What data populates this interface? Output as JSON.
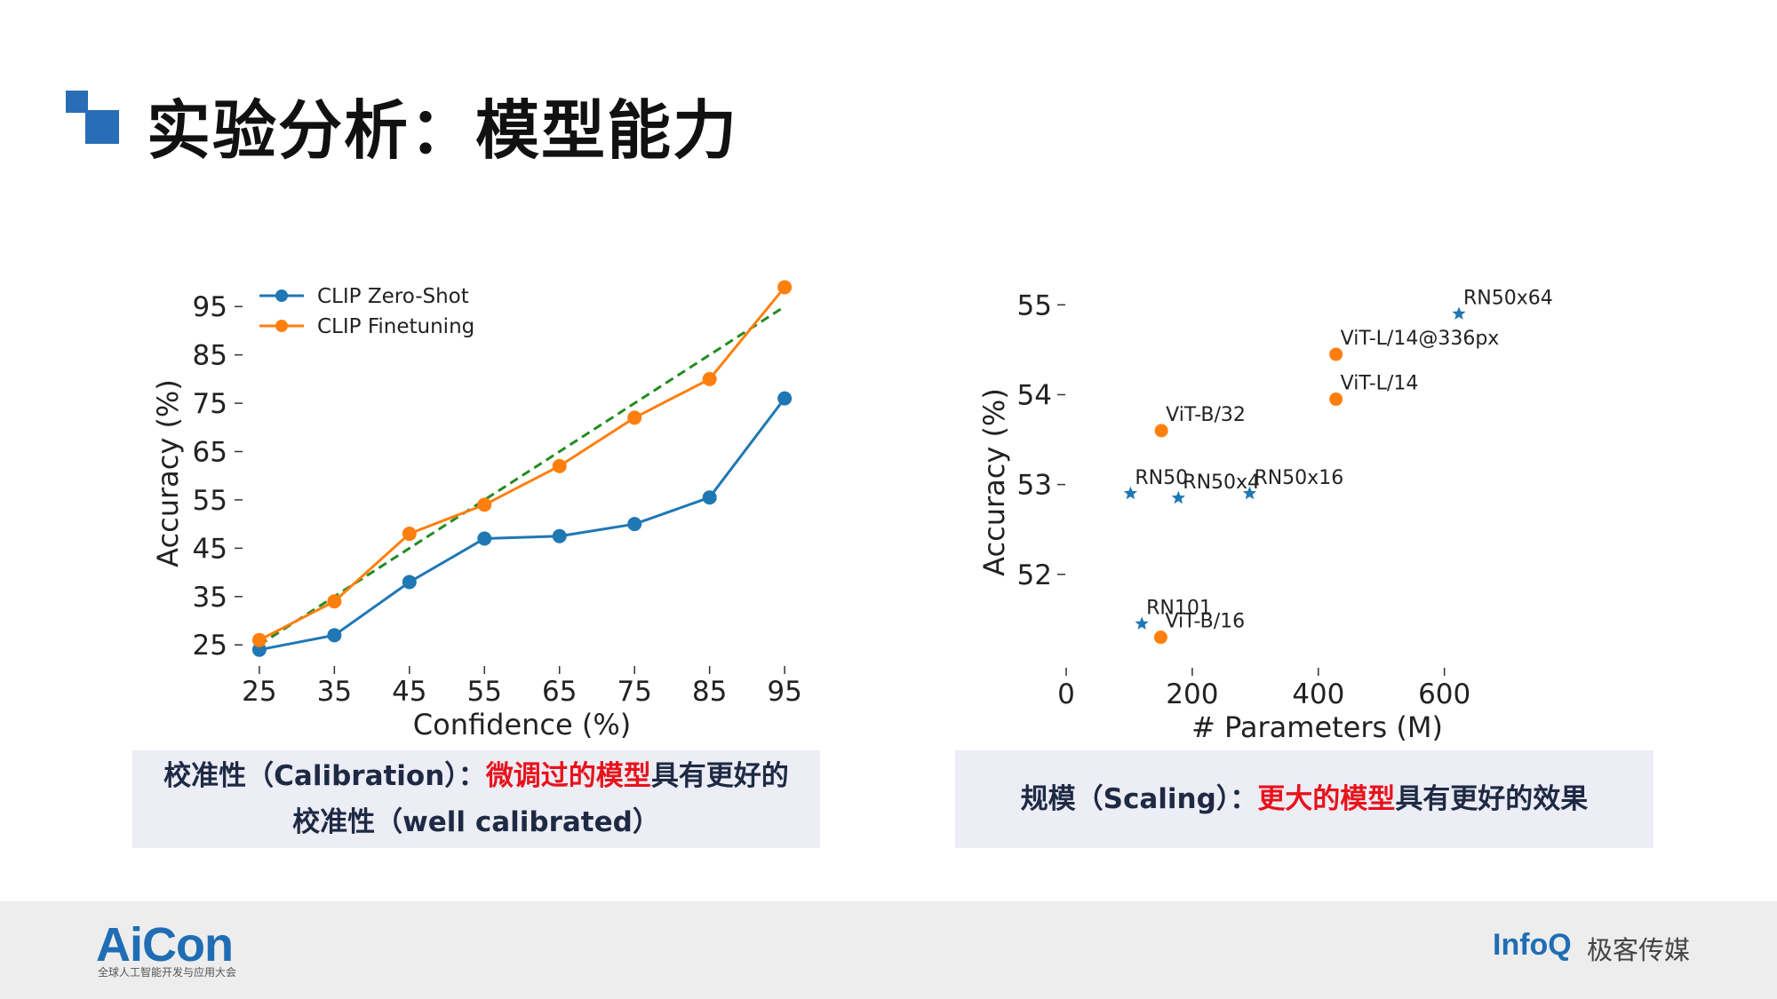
{
  "slide": {
    "title": "实验分析：模型能力",
    "colors": {
      "accent": "#2a6db7",
      "highlight": "#e8121b",
      "caption_bg": "#ecedf5"
    }
  },
  "captions": {
    "left": {
      "prefix": "校准性（Calibration）：",
      "highlight": "微调过的模型",
      "suffix": "具有更好的",
      "line2": "校准性（well calibrated）"
    },
    "right": {
      "prefix": "规模（Scaling）：",
      "highlight": "更大的模型",
      "suffix": "具有更好的效果"
    }
  },
  "footer": {
    "left_logo": "AiCon",
    "left_logo_sub": "全球人工智能开发与应用大会",
    "right_logo_infoq": "InfoQ",
    "right_logo_cn": "极客传媒"
  },
  "chart_data": [
    {
      "type": "line",
      "title": "",
      "xlabel": "Confidence (%)",
      "ylabel": "Accuracy (%)",
      "x": [
        25,
        35,
        45,
        55,
        65,
        75,
        85,
        95
      ],
      "x_ticks": [
        "25",
        "35",
        "45",
        "55",
        "65",
        "75",
        "85",
        "95"
      ],
      "y_ticks": [
        "25",
        "35",
        "45",
        "55",
        "65",
        "75",
        "85",
        "95"
      ],
      "xlim": [
        23,
        97
      ],
      "ylim": [
        21,
        100
      ],
      "series": [
        {
          "name": "CLIP Zero-Shot",
          "color": "#1f77b4",
          "values": [
            24,
            27,
            38,
            47,
            47.5,
            50,
            55.5,
            76
          ]
        },
        {
          "name": "CLIP Finetuning",
          "color": "#ff7f0e",
          "values": [
            26,
            34,
            48,
            54,
            62,
            72,
            80,
            99
          ]
        }
      ],
      "reference_line": {
        "style": "dashed",
        "color": "#228b22",
        "from": [
          25,
          25
        ],
        "to": [
          95,
          95
        ]
      },
      "grid": false,
      "legend_position": "top-left"
    },
    {
      "type": "scatter",
      "title": "",
      "xlabel": "# Parameters (M)",
      "ylabel": "Accuracy (%)",
      "x_ticks": [
        "0",
        "200",
        "400",
        "600"
      ],
      "y_ticks": [
        "52",
        "53",
        "54",
        "55"
      ],
      "xlim": [
        0,
        740
      ],
      "ylim": [
        51.0,
        55.25
      ],
      "points": [
        {
          "label": "RN50",
          "x": 102,
          "y": 52.9,
          "marker": "star",
          "color": "#1f77b4"
        },
        {
          "label": "RN50x4",
          "x": 178,
          "y": 52.85,
          "marker": "star",
          "color": "#1f77b4"
        },
        {
          "label": "RN50x16",
          "x": 291,
          "y": 52.9,
          "marker": "star",
          "color": "#1f77b4"
        },
        {
          "label": "RN101",
          "x": 120,
          "y": 51.45,
          "marker": "star",
          "color": "#1f77b4"
        },
        {
          "label": "RN50x64",
          "x": 623,
          "y": 54.9,
          "marker": "star",
          "color": "#1f77b4"
        },
        {
          "label": "ViT-B/32",
          "x": 151,
          "y": 53.6,
          "marker": "circle",
          "color": "#ff7f0e"
        },
        {
          "label": "ViT-B/16",
          "x": 150,
          "y": 51.3,
          "marker": "circle",
          "color": "#ff7f0e"
        },
        {
          "label": "ViT-L/14",
          "x": 428,
          "y": 53.95,
          "marker": "circle",
          "color": "#ff7f0e"
        },
        {
          "label": "ViT-L/14@336px",
          "x": 428,
          "y": 54.45,
          "marker": "circle",
          "color": "#ff7f0e"
        }
      ],
      "grid": false
    }
  ]
}
